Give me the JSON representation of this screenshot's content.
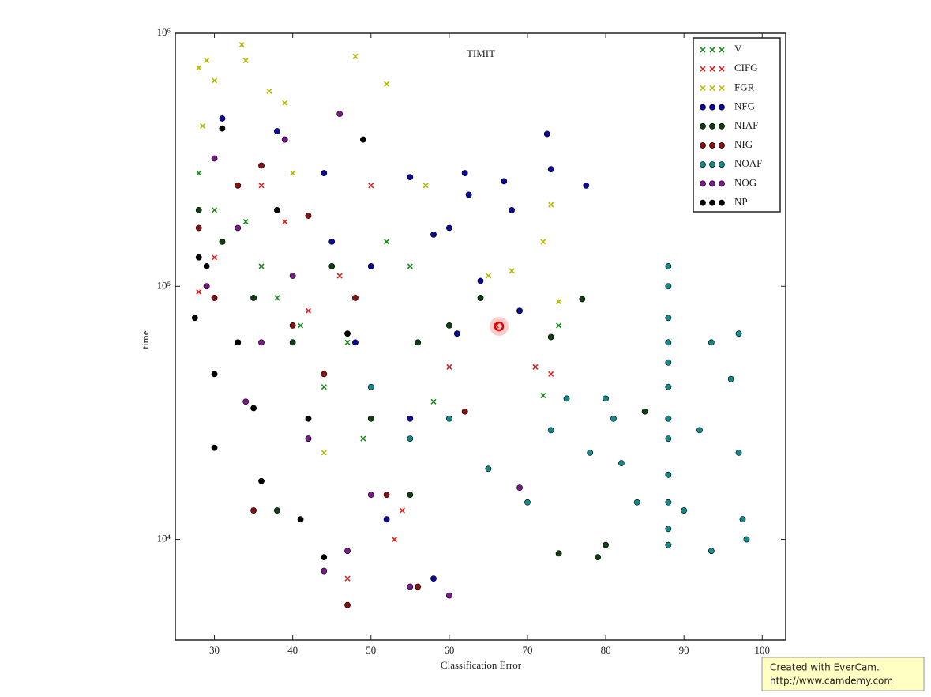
{
  "chart_data": {
    "type": "scatter",
    "title": "TIMIT",
    "x_label": "Classification Error",
    "y_label": "time",
    "xlim": [
      25,
      103
    ],
    "xticks": [
      30,
      40,
      50,
      60,
      70,
      80,
      90,
      100
    ],
    "ylim": [
      4000,
      1000000
    ],
    "log_y": true,
    "yticks": [
      {
        "value": 10000,
        "label": "10⁴"
      },
      {
        "value": 100000,
        "label": "10⁵"
      },
      {
        "value": 1000000,
        "label": "10⁶"
      }
    ],
    "legend": "upper right",
    "series": [
      {
        "name": "V",
        "color": "#1a8a1a",
        "marker": "x",
        "x": [
          28,
          30,
          31,
          34,
          36,
          38,
          41,
          44,
          47,
          49,
          52,
          55,
          58,
          72,
          74
        ],
        "values": [
          280000,
          200000,
          150000,
          180000,
          120000,
          90000,
          70000,
          40000,
          60000,
          25000,
          150000,
          120000,
          35000,
          37000,
          70000
        ]
      },
      {
        "name": "CIFG",
        "color": "#e02020",
        "marker": "x",
        "x": [
          28,
          30,
          33,
          36,
          39,
          42,
          46,
          50,
          54,
          60,
          66,
          71,
          73,
          47,
          53
        ],
        "values": [
          95000,
          130000,
          60000,
          250000,
          180000,
          80000,
          110000,
          250000,
          13000,
          48000,
          70000,
          48000,
          45000,
          7000,
          10000
        ]
      },
      {
        "name": "FGR",
        "color": "#b8b800",
        "marker": "x",
        "x": [
          28,
          28.5,
          29,
          30,
          33.5,
          34,
          37,
          39,
          48,
          52,
          57,
          65,
          68,
          72,
          73,
          74,
          40,
          44
        ],
        "values": [
          730000,
          430000,
          780000,
          650000,
          900000,
          780000,
          590000,
          530000,
          810000,
          630000,
          250000,
          110000,
          115000,
          150000,
          210000,
          87000,
          280000,
          22000
        ]
      },
      {
        "name": "NFG",
        "color": "#0a0a9a",
        "marker": "o",
        "x": [
          31,
          38,
          44,
          50,
          55,
          58,
          60,
          62,
          62.5,
          64,
          67,
          68,
          69,
          72.5,
          73,
          77.5,
          55,
          52,
          48,
          45,
          58,
          61
        ],
        "values": [
          460000,
          410000,
          280000,
          120000,
          270000,
          160000,
          170000,
          280000,
          230000,
          105000,
          260000,
          200000,
          80000,
          400000,
          290000,
          250000,
          30000,
          12000,
          60000,
          150000,
          7000,
          65000
        ]
      },
      {
        "name": "NIAF",
        "color": "#0d4010",
        "marker": "o",
        "x": [
          28,
          31,
          35,
          40,
          45,
          50,
          55,
          60,
          64,
          73,
          77,
          79,
          80,
          85,
          74,
          42,
          38,
          56
        ],
        "values": [
          200000,
          150000,
          90000,
          60000,
          120000,
          30000,
          15000,
          70000,
          90000,
          63000,
          89000,
          8500,
          9500,
          32000,
          8800,
          25000,
          13000,
          60000
        ]
      },
      {
        "name": "NIG",
        "color": "#8a1010",
        "marker": "o",
        "x": [
          28,
          30,
          33,
          36,
          40,
          44,
          48,
          52,
          56,
          62,
          47,
          35,
          42
        ],
        "values": [
          170000,
          90000,
          250000,
          300000,
          70000,
          45000,
          90000,
          15000,
          6500,
          32000,
          5500,
          13000,
          190000
        ]
      },
      {
        "name": "NOAF",
        "color": "#108a8a",
        "marker": "o",
        "x": [
          88,
          88,
          88,
          88,
          88,
          88,
          88,
          88,
          88,
          88,
          88,
          88,
          80,
          81,
          78,
          82,
          84,
          90,
          92,
          93.5,
          93.5,
          96,
          97,
          97,
          97.5,
          98,
          75,
          73,
          70,
          65,
          60,
          55,
          50
        ],
        "values": [
          120000,
          100000,
          75000,
          60000,
          50000,
          40000,
          30000,
          25000,
          18000,
          14000,
          11000,
          9500,
          36000,
          30000,
          22000,
          20000,
          14000,
          13000,
          27000,
          60000,
          9000,
          43000,
          65000,
          22000,
          12000,
          10000,
          36000,
          27000,
          14000,
          19000,
          30000,
          25000,
          40000
        ]
      },
      {
        "name": "NOG",
        "color": "#7a1a8a",
        "marker": "o",
        "x": [
          30,
          33,
          36,
          39,
          42,
          46,
          47,
          50,
          55,
          60,
          69,
          34,
          40,
          44,
          29
        ],
        "values": [
          320000,
          170000,
          60000,
          380000,
          25000,
          480000,
          9000,
          15000,
          6500,
          6000,
          16000,
          35000,
          110000,
          7500,
          100000
        ]
      },
      {
        "name": "NP",
        "color": "#000000",
        "marker": "o",
        "x": [
          27.5,
          29,
          30,
          31,
          33,
          35,
          38,
          41,
          44,
          47,
          49,
          30,
          36,
          42,
          28
        ],
        "values": [
          75000,
          120000,
          23000,
          420000,
          60000,
          33000,
          200000,
          12000,
          8500,
          65000,
          380000,
          45000,
          17000,
          30000,
          130000
        ]
      }
    ]
  },
  "watermark": [
    "Created with EverCam.",
    "http://www.camdemy.com"
  ]
}
